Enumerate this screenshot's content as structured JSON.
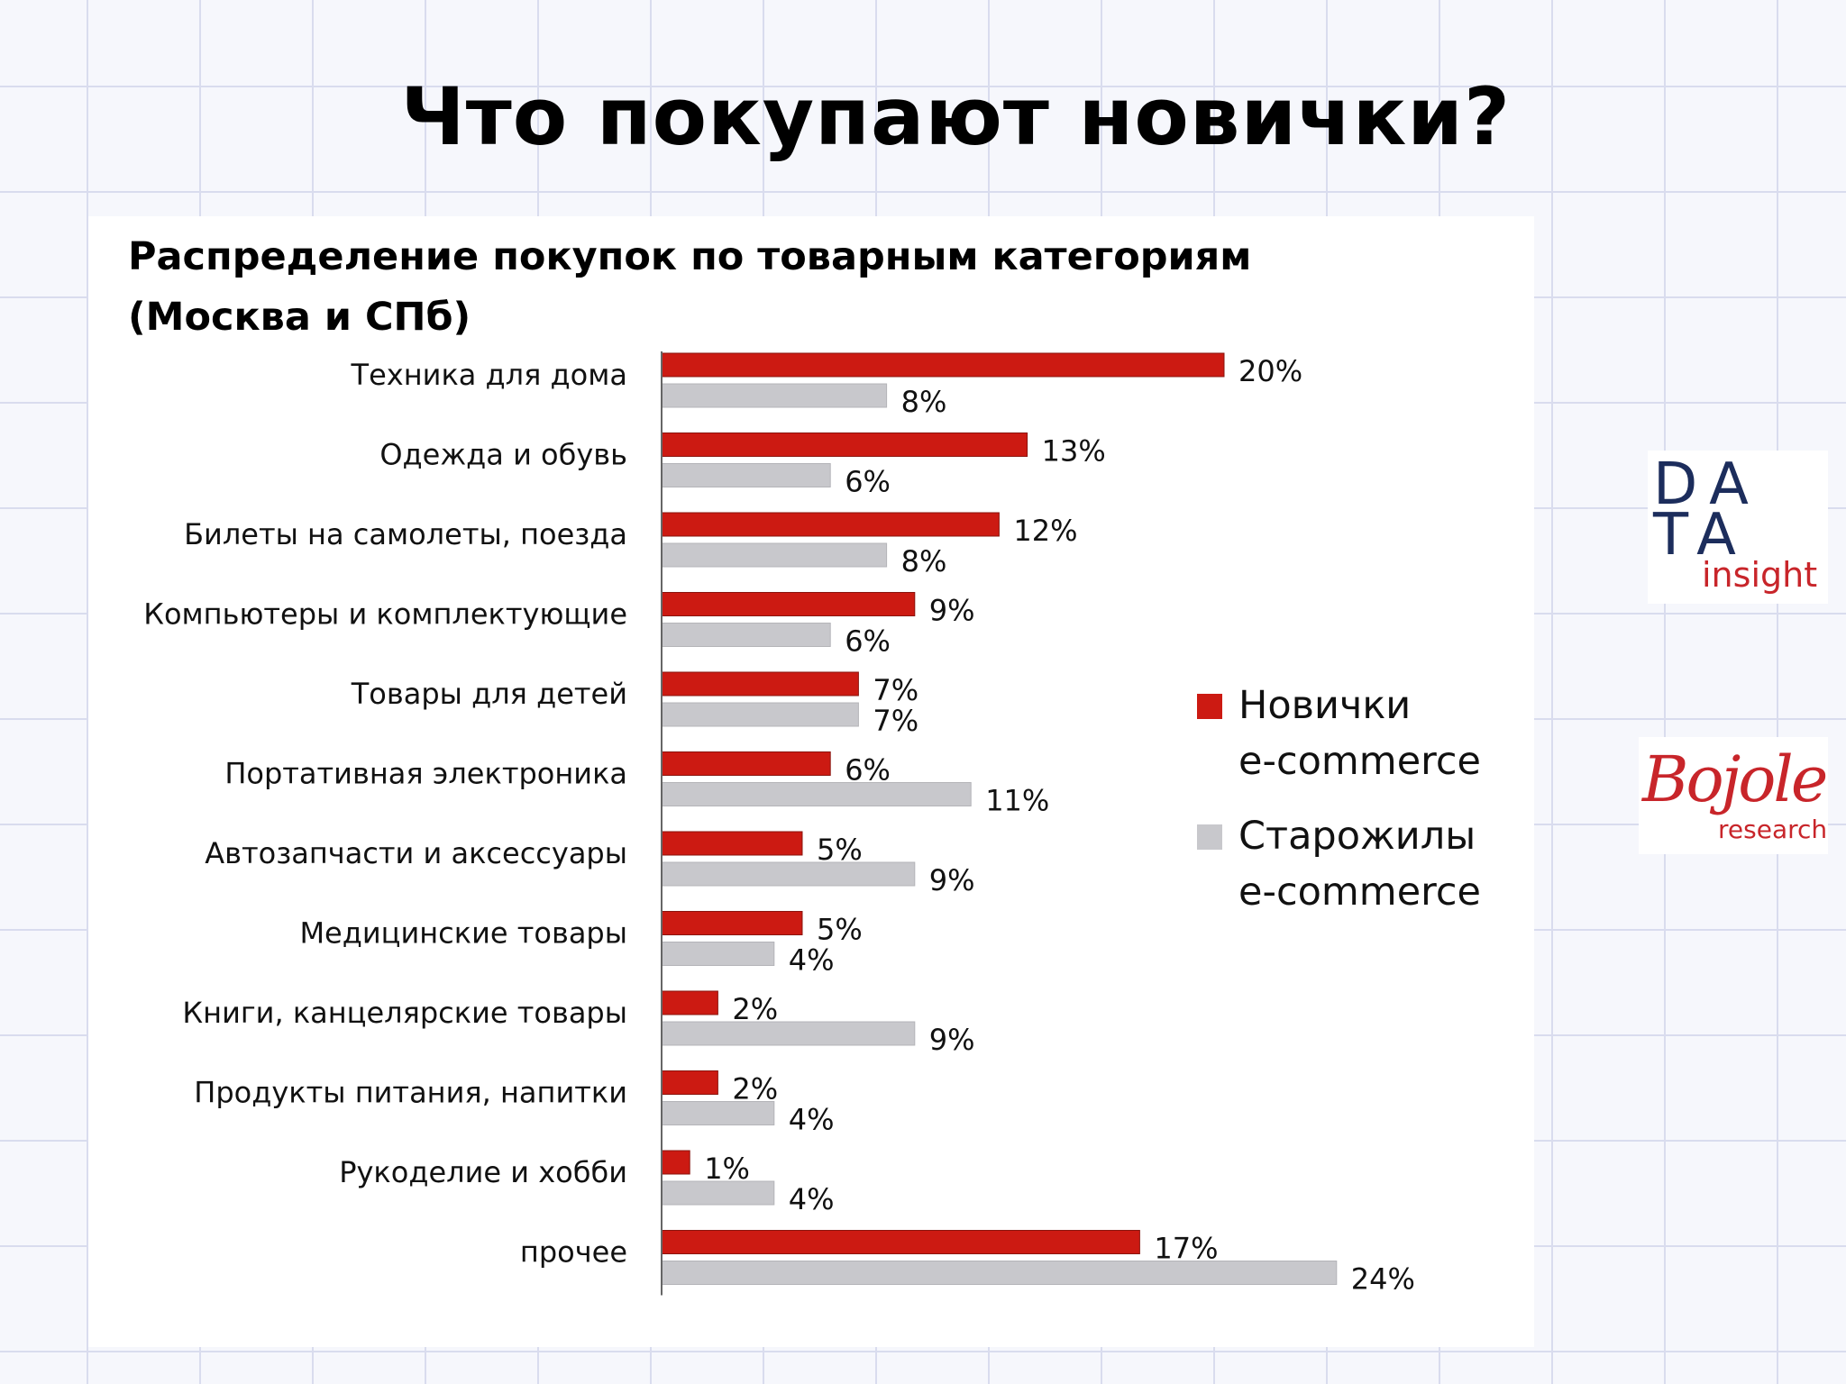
{
  "slide": {
    "title": "Что покупают новички?"
  },
  "chart_data": {
    "type": "bar",
    "orientation": "horizontal",
    "title": "Распределение покупок по товарным категориям",
    "subtitle": "(Москва и СПб)",
    "categories": [
      "Техника для дома",
      "Одежда и обувь",
      "Билеты на самолеты, поезда",
      "Компьютеры и комплектующие",
      "Товары для детей",
      "Портативная электроника",
      "Автозапчасти и аксессуары",
      "Медицинские товары",
      "Книги, канцелярские товары",
      "Продукты питания, напитки",
      "Рукоделие и хобби",
      "прочее"
    ],
    "series": [
      {
        "name": "Новички e-commerce",
        "values": [
          20,
          13,
          12,
          9,
          7,
          6,
          5,
          5,
          2,
          2,
          1,
          17
        ],
        "color": "#cc1a12"
      },
      {
        "name": "Старожилы e-commerce",
        "values": [
          8,
          6,
          8,
          6,
          7,
          11,
          9,
          4,
          9,
          4,
          4,
          24
        ],
        "color": "#c8c8cc"
      }
    ],
    "value_suffix": "%",
    "xlim": [
      0,
      30
    ],
    "grid": false,
    "legend_position": "right"
  },
  "legend": {
    "items": [
      {
        "line1": "Новички",
        "line2": "e-commerce",
        "color": "#cc1a12"
      },
      {
        "line1": "Старожилы",
        "line2": "e-commerce",
        "color": "#c8c8cc"
      }
    ]
  },
  "logos": {
    "data_insight": {
      "line1": "DA",
      "line2": "TA",
      "line3": "insight"
    },
    "bojole": {
      "script": "Bojole",
      "sub": "research"
    }
  }
}
